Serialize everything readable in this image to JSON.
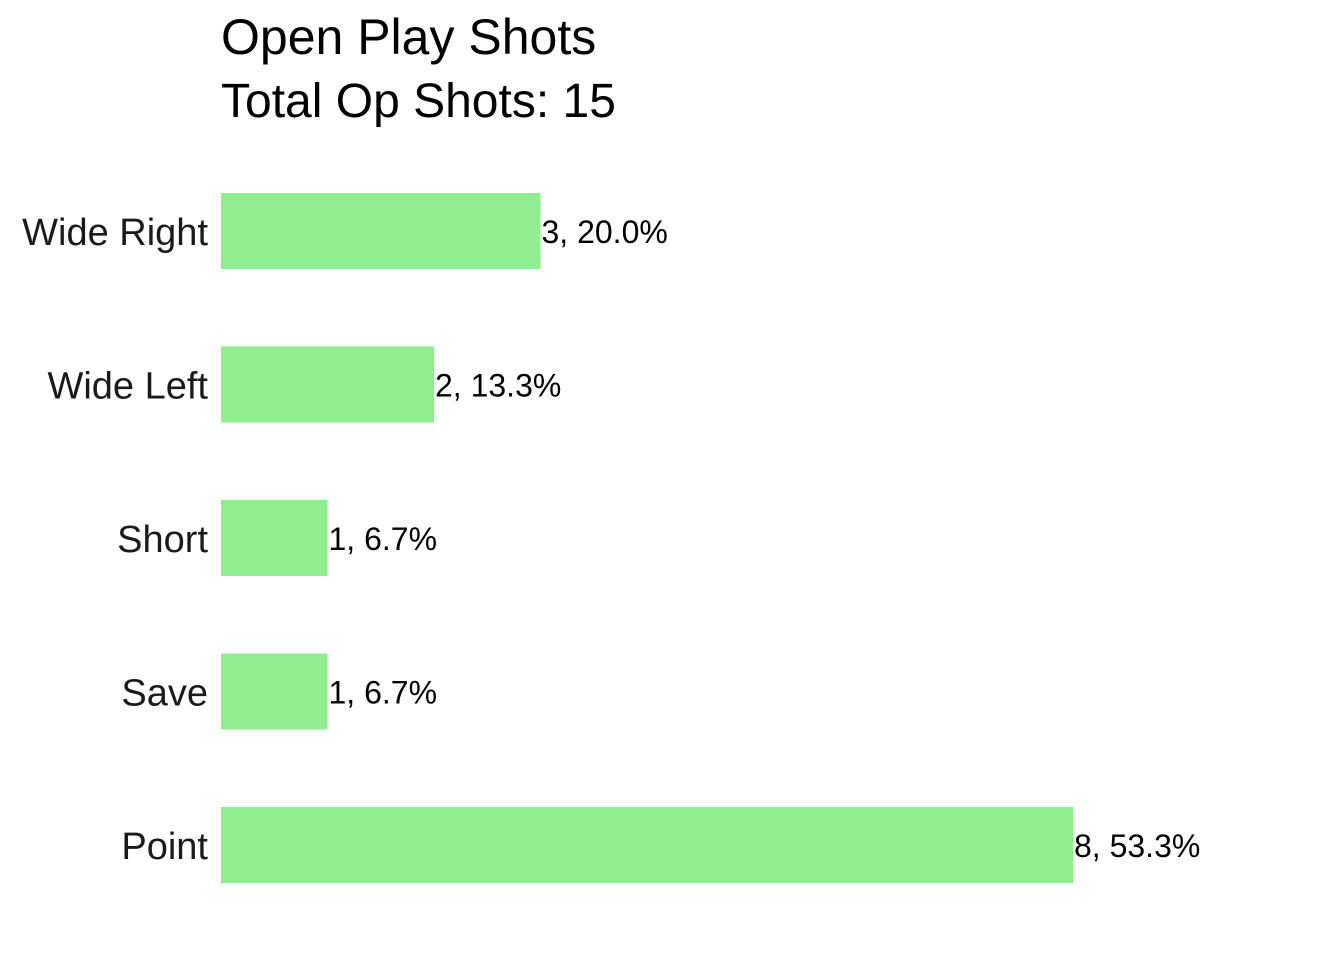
{
  "chart_data": {
    "type": "bar",
    "orientation": "horizontal",
    "title": "Open Play Shots",
    "subtitle": "Total Op Shots: 15",
    "categories": [
      "Wide Right",
      "Wide Left",
      "Short",
      "Save",
      "Point"
    ],
    "values": [
      3,
      2,
      1,
      1,
      8
    ],
    "data_labels": [
      "3, 20.0%",
      "2, 13.3%",
      "1, 6.7%",
      "1, 6.7%",
      "8, 53.3%"
    ],
    "xlim": [
      0,
      8
    ],
    "xlabel": "",
    "ylabel": "",
    "grid": false,
    "legend": "none",
    "bar_color": "#90EE90"
  }
}
